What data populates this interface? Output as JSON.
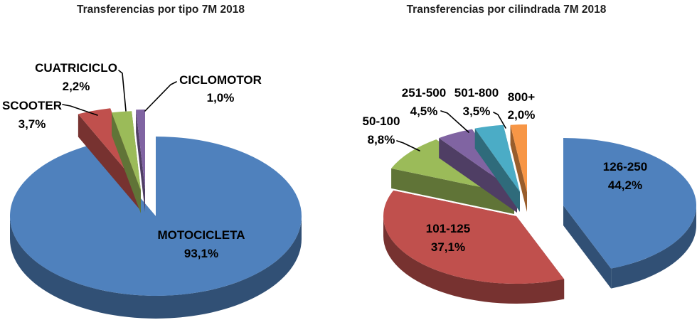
{
  "page": {
    "background_color": "#FFFFFF",
    "text_color": "#000000"
  },
  "chart_data": [
    {
      "type": "pie",
      "style": "3d-exploded",
      "title": "Transferencias por tipo 7M 2018",
      "legend": "none",
      "unit": "%",
      "decimal_format": "comma",
      "categories": [
        "MOTOCICLETA",
        "SCOOTER",
        "CUATRICICLO",
        "CICLOMOTOR"
      ],
      "values": [
        93.1,
        3.7,
        2.2,
        1.0
      ],
      "value_labels": [
        "93,1%",
        "3,7%",
        "2,2%",
        "1,0%"
      ],
      "colors": [
        "#4F81BD",
        "#C0504D",
        "#9BBB59",
        "#8064A2"
      ]
    },
    {
      "type": "pie",
      "style": "3d-exploded",
      "title": "Transferencias por cilindrada 7M 2018",
      "legend": "none",
      "unit": "%",
      "decimal_format": "comma",
      "categories": [
        "126-250",
        "101-125",
        "50-100",
        "251-500",
        "501-800",
        "800+"
      ],
      "values": [
        44.2,
        37.1,
        8.8,
        4.5,
        3.5,
        2.0
      ],
      "value_labels": [
        "44,2%",
        "37,1%",
        "8,8%",
        "4,5%",
        "3,5%",
        "2,0%"
      ],
      "colors": [
        "#4F81BD",
        "#C0504D",
        "#9BBB59",
        "#8064A2",
        "#4BACC6",
        "#F79646"
      ]
    }
  ]
}
